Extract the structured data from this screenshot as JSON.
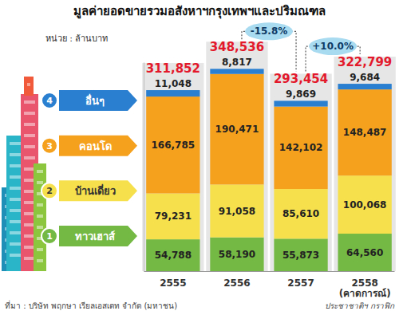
{
  "chart_data": {
    "type": "bar",
    "title": "มูลค่ายอดขายรวมอสังหาฯกรุงเทพฯและปริมณฑล",
    "unit": "หน่วย : ล้านบาท",
    "categories": [
      "2555",
      "2556",
      "2557",
      "2558 (คาดการณ์)"
    ],
    "stacked": true,
    "data_labels": true,
    "tick_labels": "x",
    "ylim": [
      0,
      360000
    ],
    "series": [
      {
        "number": "1",
        "name": "ทาวเฮาส์",
        "color": "#74b943",
        "values": [
          54788,
          58190,
          55873,
          64560
        ],
        "value_labels": [
          "54,788",
          "58,190",
          "55,873",
          "64,560"
        ]
      },
      {
        "number": "2",
        "name": "บ้านเดี่ยว",
        "color": "#f6e04b",
        "values": [
          79231,
          91058,
          85610,
          100068
        ],
        "value_labels": [
          "79,231",
          "91,058",
          "85,610",
          "100,068"
        ]
      },
      {
        "number": "3",
        "name": "คอนโด",
        "color": "#f6a11d",
        "values": [
          166785,
          190471,
          142102,
          148487
        ],
        "value_labels": [
          "166,785",
          "190,471",
          "142,102",
          "148,487"
        ]
      },
      {
        "number": "4",
        "name": "อื่นๆ",
        "color": "#2b7fd0",
        "values": [
          11048,
          8817,
          9869,
          9684
        ],
        "value_labels": [
          "11,048",
          "8,817",
          "9,869",
          "9,684"
        ]
      }
    ],
    "totals": {
      "values": [
        311852,
        348536,
        293454,
        322799
      ],
      "value_labels": [
        "311,852",
        "348,536",
        "293,454",
        "322,799"
      ]
    },
    "changes": [
      {
        "from": "2556",
        "to": "2557",
        "label": "-15.8%"
      },
      {
        "from": "2557",
        "to": "2558 (คาดการณ์)",
        "label": "+10.0%"
      }
    ],
    "source": "ที่มา : บริษัท พฤกษา เรียลเอสเตท จำกัด (มหาชน)",
    "credit": "ประชาชาติฯ กราฟิก"
  }
}
